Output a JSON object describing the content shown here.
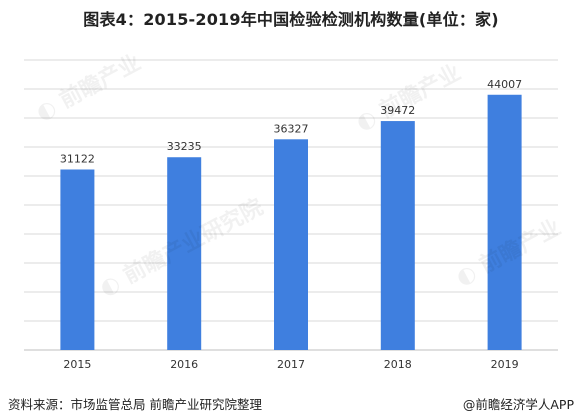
{
  "page": {
    "title": "图表4：2015-2019年中国检验检测机构数量(单位：家)",
    "source": "资料来源：市场监管总局 前瞻产业研究院整理",
    "brand": "@前瞻经济学人APP"
  },
  "colors": {
    "bar": "#3f7fdf",
    "grid": "#d9d9d9",
    "axis": "#bfbfbf",
    "text": "#333333"
  },
  "chart_data": {
    "type": "bar",
    "title": "图表4：2015-2019年中国检验检测机构数量(单位：家)",
    "categories": [
      "2015",
      "2016",
      "2017",
      "2018",
      "2019"
    ],
    "values": [
      31122,
      33235,
      36327,
      39472,
      44007
    ],
    "ylim": [
      0,
      50000
    ],
    "grid": true,
    "xlabel": "",
    "ylabel": ""
  }
}
